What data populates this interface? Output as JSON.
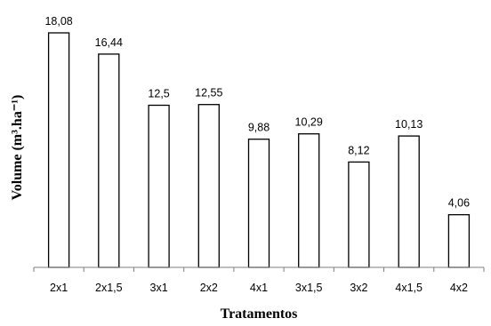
{
  "chart_data": {
    "type": "bar",
    "categories": [
      "2x1",
      "2x1,5",
      "3x1",
      "2x2",
      "4x1",
      "3x1,5",
      "3x2",
      "4x1,5",
      "4x2"
    ],
    "values": [
      18.08,
      16.44,
      12.5,
      12.55,
      9.88,
      10.29,
      8.12,
      10.13,
      4.06
    ],
    "data_labels": [
      "18,08",
      "16,44",
      "12,5",
      "12,55",
      "9,88",
      "10,29",
      "8,12",
      "10,13",
      "4,06"
    ],
    "title": "",
    "xlabel": "Tratamentos",
    "ylabel": "Volume  (m³.ha⁻¹)",
    "ylim": [
      0,
      18.08
    ],
    "grid": false,
    "legend": "none",
    "bar_fill": "#ffffff",
    "bar_stroke": "#000000"
  }
}
